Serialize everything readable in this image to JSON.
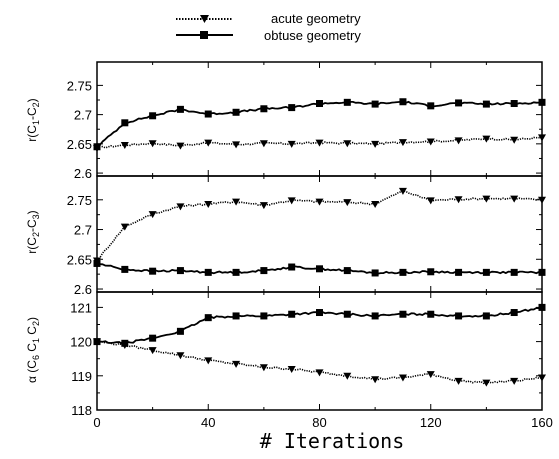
{
  "chart_data": {
    "type": "line",
    "xlabel": "# Iterations",
    "xlim": [
      0,
      160
    ],
    "xticks": [
      "0",
      "40",
      "80",
      "120",
      "160"
    ],
    "legend": {
      "placement": "top-center",
      "entries": [
        {
          "name": "acute geometry",
          "marker": "triangle-down",
          "line": "dotted"
        },
        {
          "name": "obtuse geometry",
          "marker": "square",
          "line": "solid"
        }
      ]
    },
    "panels": [
      {
        "ylabel": {
          "main": "r(C",
          "s1": "1",
          "mid": "-C",
          "s2": "2",
          "end": ")"
        },
        "ylim": [
          2.595,
          2.79
        ],
        "yticks": [
          "2.6",
          "2.65",
          "2.7",
          "2.75"
        ],
        "tick_values": [
          2.6,
          2.65,
          2.7,
          2.75
        ],
        "series": [
          {
            "name": "acute geometry",
            "x": [
              0,
              10,
              20,
              30,
              40,
              50,
              60,
              70,
              80,
              90,
              100,
              110,
              120,
              130,
              140,
              150,
              160
            ],
            "values": [
              2.643,
              2.648,
              2.651,
              2.647,
              2.652,
              2.649,
              2.651,
              2.65,
              2.652,
              2.651,
              2.65,
              2.653,
              2.654,
              2.656,
              2.659,
              2.657,
              2.661
            ]
          },
          {
            "name": "obtuse geometry",
            "x": [
              0,
              10,
              20,
              30,
              40,
              50,
              60,
              70,
              80,
              90,
              100,
              110,
              120,
              130,
              140,
              150,
              160
            ],
            "values": [
              2.645,
              2.686,
              2.698,
              2.709,
              2.701,
              2.704,
              2.71,
              2.712,
              2.719,
              2.721,
              2.718,
              2.722,
              2.715,
              2.72,
              2.718,
              2.719,
              2.721
            ]
          }
        ]
      },
      {
        "ylabel": {
          "main": "r(C",
          "s1": "2",
          "mid": "-C",
          "s2": "3",
          "end": ")"
        },
        "ylim": [
          2.595,
          2.79
        ],
        "yticks": [
          "2.6",
          "2.65",
          "2.7",
          "2.75"
        ],
        "tick_values": [
          2.6,
          2.65,
          2.7,
          2.75
        ],
        "series": [
          {
            "name": "acute geometry",
            "x": [
              0,
              10,
              20,
              30,
              40,
              50,
              60,
              70,
              80,
              90,
              100,
              110,
              120,
              130,
              140,
              150,
              160
            ],
            "values": [
              2.648,
              2.705,
              2.726,
              2.739,
              2.743,
              2.747,
              2.741,
              2.749,
              2.747,
              2.746,
              2.743,
              2.765,
              2.749,
              2.751,
              2.752,
              2.752,
              2.75
            ]
          },
          {
            "name": "obtuse geometry",
            "x": [
              0,
              10,
              20,
              30,
              40,
              50,
              60,
              70,
              80,
              90,
              100,
              110,
              120,
              130,
              140,
              150,
              160
            ],
            "values": [
              2.643,
              2.633,
              2.63,
              2.631,
              2.628,
              2.628,
              2.631,
              2.637,
              2.634,
              2.631,
              2.627,
              2.628,
              2.629,
              2.628,
              2.628,
              2.628,
              2.628
            ]
          }
        ]
      },
      {
        "ylabel": {
          "main": "α (C",
          "s1": "6",
          "mid": " C",
          "s2": "1",
          "mid2": " C",
          "s3": "2",
          "end": ")"
        },
        "ylim": [
          118,
          121.45
        ],
        "yticks": [
          "118",
          "119",
          "120",
          "121"
        ],
        "tick_values": [
          118,
          119,
          120,
          121
        ],
        "series": [
          {
            "name": "acute geometry",
            "x": [
              0,
              10,
              20,
              30,
              40,
              50,
              60,
              70,
              80,
              90,
              100,
              110,
              120,
              130,
              140,
              150,
              160
            ],
            "values": [
              120.0,
              119.9,
              119.75,
              119.6,
              119.45,
              119.35,
              119.25,
              119.2,
              119.1,
              119.0,
              118.9,
              118.95,
              119.05,
              118.85,
              118.8,
              118.85,
              118.95
            ]
          },
          {
            "name": "obtuse geometry",
            "x": [
              0,
              10,
              20,
              30,
              40,
              50,
              60,
              70,
              80,
              90,
              100,
              110,
              120,
              130,
              140,
              150,
              160
            ],
            "values": [
              120.0,
              119.95,
              120.1,
              120.3,
              120.7,
              120.75,
              120.75,
              120.8,
              120.85,
              120.8,
              120.75,
              120.8,
              120.8,
              120.75,
              120.75,
              120.85,
              121.0
            ]
          }
        ]
      }
    ]
  }
}
